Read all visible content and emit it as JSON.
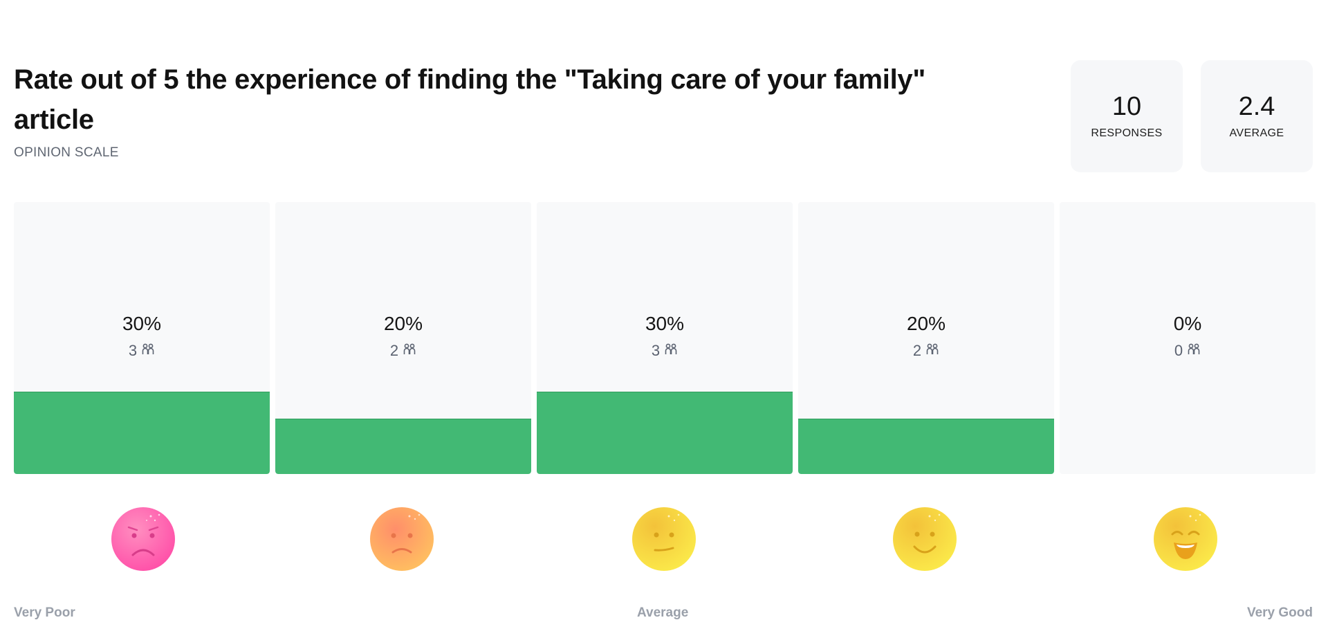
{
  "question": {
    "title": "Rate out of 5 the experience of finding the \"Taking care of your family\" article",
    "type_label": "OPINION SCALE"
  },
  "stats": {
    "responses_value": "10",
    "responses_label": "RESPONSES",
    "average_value": "2.4",
    "average_label": "AVERAGE"
  },
  "options": [
    {
      "percent_text": "30%",
      "count_text": "3",
      "share": 0.3,
      "face": "very-sad-face-icon"
    },
    {
      "percent_text": "20%",
      "count_text": "2",
      "share": 0.2,
      "face": "sad-face-icon"
    },
    {
      "percent_text": "30%",
      "count_text": "3",
      "share": 0.3,
      "face": "neutral-face-icon"
    },
    {
      "percent_text": "20%",
      "count_text": "2",
      "share": 0.2,
      "face": "smiling-face-icon"
    },
    {
      "percent_text": "0%",
      "count_text": "0",
      "share": 0.0,
      "face": "grinning-face-icon"
    }
  ],
  "scale_labels": {
    "low": "Very Poor",
    "mid": "Average",
    "high": "Very Good"
  },
  "colors": {
    "bar_fill": "#42b974",
    "bar_background": "#f8f9fa",
    "card_background": "#f6f7f9"
  }
}
